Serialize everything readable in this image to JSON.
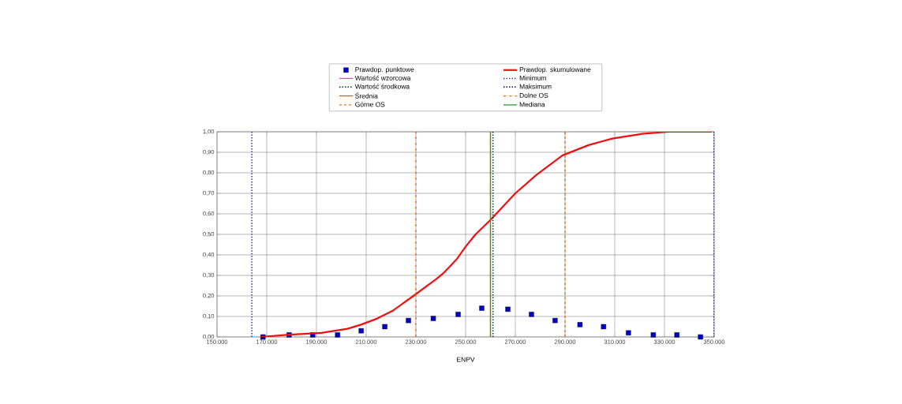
{
  "chart_data": {
    "type": "line",
    "xlabel": "ENPV",
    "series": [
      {
        "name": "Prawdop. punktowe",
        "type": "scatter",
        "color": "#0000cc",
        "x": [
          168500,
          179000,
          188500,
          198500,
          208000,
          217500,
          227000,
          237000,
          247000,
          256500,
          267000,
          276500,
          286000,
          296000,
          305500,
          315500,
          325500,
          335000,
          344500
        ],
        "values": [
          0.0,
          0.01,
          0.01,
          0.01,
          0.03,
          0.05,
          0.08,
          0.09,
          0.11,
          0.14,
          0.135,
          0.11,
          0.08,
          0.06,
          0.05,
          0.02,
          0.01,
          0.01,
          0.0
        ]
      },
      {
        "name": "Prawdop. skumulowane",
        "type": "line",
        "color": "#ee1111",
        "x": [
          167500,
          178000,
          192000,
          202500,
          208000,
          214500,
          221000,
          229000,
          238000,
          241000,
          246500,
          250000,
          254000,
          260000,
          270000,
          278500,
          289000,
          299500,
          309000,
          321000,
          331500,
          349000
        ],
        "values": [
          0.0,
          0.01,
          0.02,
          0.04,
          0.06,
          0.09,
          0.13,
          0.2,
          0.28,
          0.31,
          0.38,
          0.44,
          0.5,
          0.57,
          0.7,
          0.79,
          0.885,
          0.935,
          0.967,
          0.99,
          1.0,
          1.0
        ]
      }
    ],
    "ref_lines": [
      {
        "axis": "x",
        "value": null,
        "label": "Wartość wzorcowa",
        "color": "#ff33ff",
        "line_style": "solid"
      },
      {
        "axis": "x",
        "value": 164000,
        "label": "Minimum",
        "color": "#333399",
        "line_style": "dotted"
      },
      {
        "axis": "x",
        "value": 261000,
        "label": "Wartość środkowa",
        "color": "#003333",
        "line_style": "dotted"
      },
      {
        "axis": "x",
        "value": 350000,
        "label": "Maksimum",
        "color": "#000066",
        "line_style": "dotted"
      },
      {
        "axis": "x",
        "value": 260000,
        "label": "Średnia",
        "color": "#cc6600",
        "line_style": "solid"
      },
      {
        "axis": "x",
        "value": 230000,
        "label": "Dolne OS",
        "color": "#ff6600",
        "line_style": "dashdot"
      },
      {
        "axis": "x",
        "value": 290000,
        "label": "Górne OS",
        "color": "#dd7722",
        "line_style": "dashed"
      },
      {
        "axis": "x",
        "value": 260000,
        "label": "Mediana",
        "color": "#339933",
        "line_style": "solid"
      }
    ],
    "xlim": [
      150000,
      350000
    ],
    "xticks": [
      {
        "value": 150000,
        "label": "150.000"
      },
      {
        "value": 170000,
        "label": "170.000"
      },
      {
        "value": 190000,
        "label": "190.000"
      },
      {
        "value": 210000,
        "label": "210.000"
      },
      {
        "value": 230000,
        "label": "230.000"
      },
      {
        "value": 250000,
        "label": "250.000"
      },
      {
        "value": 270000,
        "label": "270.000"
      },
      {
        "value": 290000,
        "label": "290.000"
      },
      {
        "value": 310000,
        "label": "310.000"
      },
      {
        "value": 330000,
        "label": "330.000"
      },
      {
        "value": 350000,
        "label": "350.000"
      }
    ],
    "ylim": [
      0,
      1
    ],
    "yticks": [
      {
        "value": 0,
        "label": "0,00"
      },
      {
        "value": 0.1,
        "label": "0,10"
      },
      {
        "value": 0.2,
        "label": "0,20"
      },
      {
        "value": 0.3,
        "label": "0,30"
      },
      {
        "value": 0.4,
        "label": "0,40"
      },
      {
        "value": 0.5,
        "label": "0,50"
      },
      {
        "value": 0.6,
        "label": "0,60"
      },
      {
        "value": 0.7,
        "label": "0,70"
      },
      {
        "value": 0.8,
        "label": "0,80"
      },
      {
        "value": 0.9,
        "label": "0,90"
      },
      {
        "value": 1,
        "label": "1,00"
      }
    ],
    "grid": true,
    "legend": "top"
  }
}
